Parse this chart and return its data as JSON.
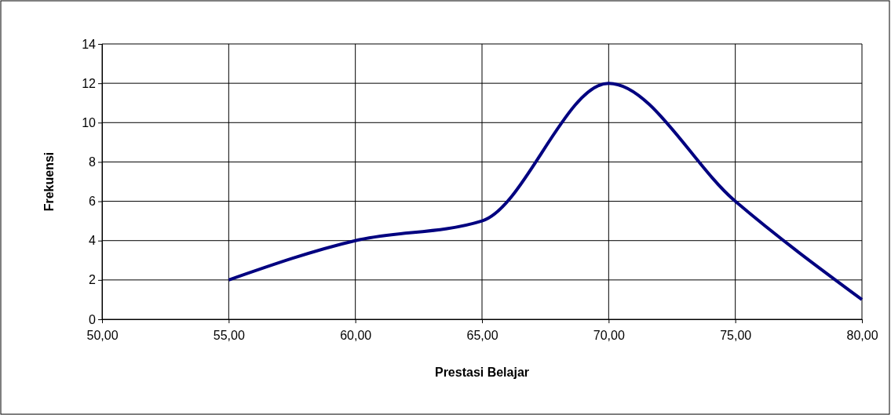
{
  "chart_data": {
    "type": "line",
    "xlabel": "Prestasi Belajar",
    "ylabel": "Frekuensi",
    "x": [
      55,
      60,
      65,
      70,
      75,
      80
    ],
    "series": [
      {
        "color": "#000080",
        "values": [
          2,
          4,
          5,
          12,
          6,
          1
        ]
      }
    ],
    "xlim": [
      50,
      80
    ],
    "xticks": [
      {
        "value": 50,
        "label": "50,00"
      },
      {
        "value": 55,
        "label": "55,00"
      },
      {
        "value": 60,
        "label": "60,00"
      },
      {
        "value": 65,
        "label": "65,00"
      },
      {
        "value": 70,
        "label": "70,00"
      },
      {
        "value": 75,
        "label": "75,00"
      },
      {
        "value": 80,
        "label": "80,00"
      }
    ],
    "ylim": [
      0,
      14
    ],
    "yticks": [
      0,
      2,
      4,
      6,
      8,
      10,
      12,
      14
    ],
    "grid": true,
    "marker": "none",
    "line_style": "solid"
  }
}
